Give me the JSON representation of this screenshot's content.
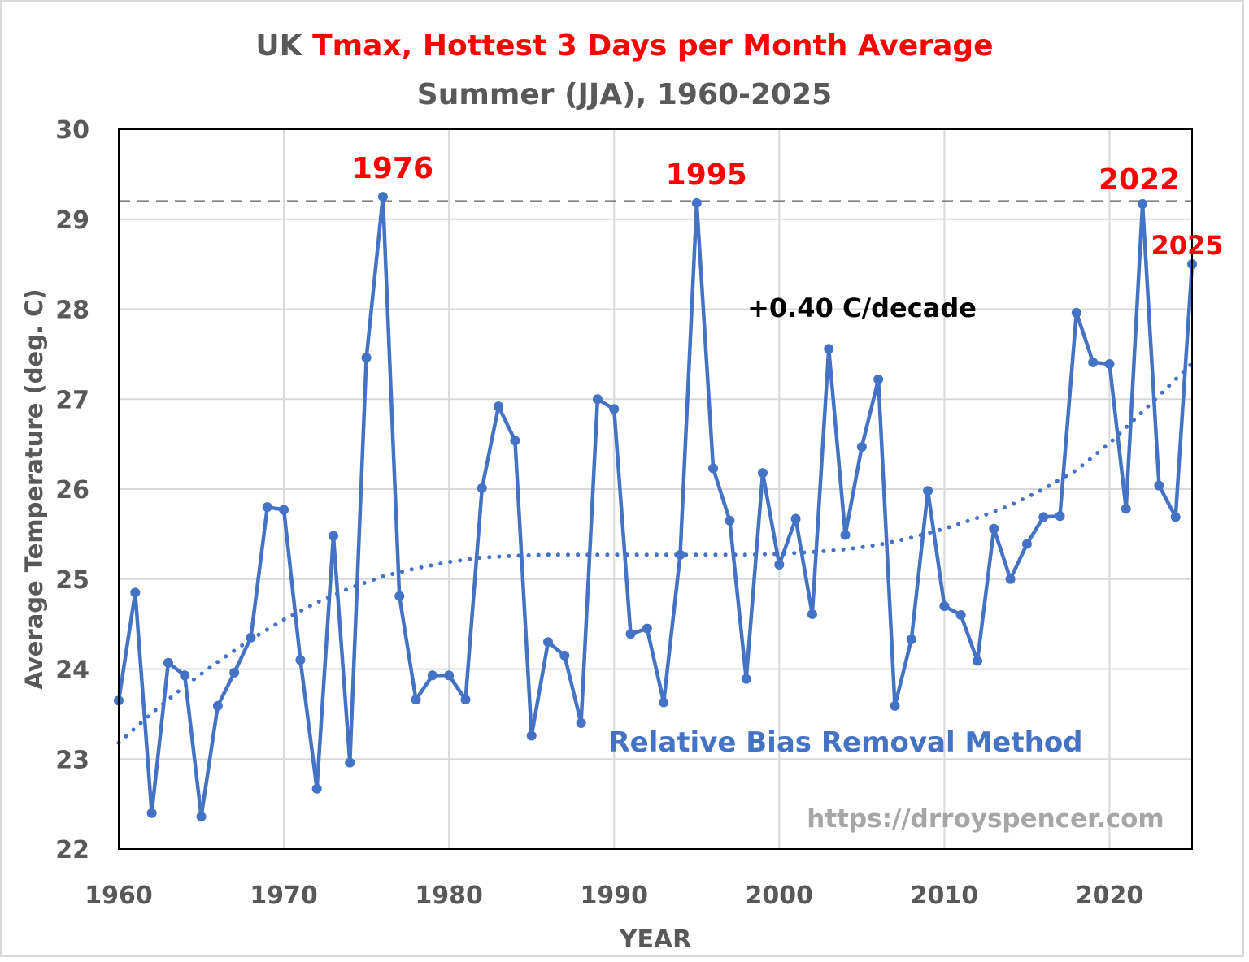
{
  "chart_data": {
    "type": "line",
    "title_part1": "UK ",
    "title_part2": "Tmax, Hottest 3 Days per Month Average",
    "subtitle": "Summer (JJA), 1960-2025",
    "xlabel": "YEAR",
    "ylabel": "Average Temperature (deg. C)",
    "xlim": [
      1960,
      2025
    ],
    "ylim": [
      22,
      30
    ],
    "xticks": [
      1960,
      1970,
      1980,
      1990,
      2000,
      2010,
      2020
    ],
    "yticks": [
      22,
      23,
      24,
      25,
      26,
      27,
      28,
      29,
      30
    ],
    "grid": true,
    "x": [
      1960,
      1961,
      1962,
      1963,
      1964,
      1965,
      1966,
      1967,
      1968,
      1969,
      1970,
      1971,
      1972,
      1973,
      1974,
      1975,
      1976,
      1977,
      1978,
      1979,
      1980,
      1981,
      1982,
      1983,
      1984,
      1985,
      1986,
      1987,
      1988,
      1989,
      1990,
      1991,
      1992,
      1993,
      1994,
      1995,
      1996,
      1997,
      1998,
      1999,
      2000,
      2001,
      2002,
      2003,
      2004,
      2005,
      2006,
      2007,
      2008,
      2009,
      2010,
      2011,
      2012,
      2013,
      2014,
      2015,
      2016,
      2017,
      2018,
      2019,
      2020,
      2021,
      2022,
      2023,
      2024,
      2025
    ],
    "series": [
      {
        "values": [
          23.65,
          24.85,
          22.4,
          24.07,
          23.93,
          22.36,
          23.59,
          23.96,
          24.35,
          25.8,
          25.77,
          24.1,
          22.67,
          25.48,
          22.96,
          27.46,
          29.25,
          24.81,
          23.66,
          23.93,
          23.93,
          23.66,
          26.01,
          26.92,
          26.54,
          23.26,
          24.3,
          24.15,
          23.4,
          27.0,
          26.89,
          24.39,
          24.45,
          23.63,
          25.27,
          29.18,
          26.23,
          25.65,
          23.89,
          26.18,
          25.16,
          25.67,
          24.61,
          27.56,
          25.49,
          26.47,
          27.22,
          23.59,
          24.33,
          25.98,
          24.7,
          24.6,
          24.09,
          25.56,
          25.0,
          25.39,
          25.69,
          25.7,
          27.96,
          27.41,
          27.39,
          25.78,
          29.17,
          26.04,
          25.69,
          28.5
        ]
      }
    ],
    "trend": {
      "style": "dotted",
      "x": [
        1960,
        1962,
        1964,
        1966,
        1968,
        1970,
        1972,
        1974,
        1976,
        1978,
        1980,
        1982,
        1984,
        1986,
        1988,
        1990,
        1992,
        1994,
        1996,
        1998,
        2000,
        2002,
        2004,
        2006,
        2008,
        2010,
        2012,
        2014,
        2016,
        2018,
        2020,
        2022,
        2024,
        2025
      ],
      "values": [
        23.18,
        23.51,
        23.81,
        24.08,
        24.33,
        24.55,
        24.74,
        24.9,
        25.03,
        25.12,
        25.19,
        25.24,
        25.26,
        25.27,
        25.27,
        25.27,
        25.27,
        25.27,
        25.27,
        25.27,
        25.28,
        25.3,
        25.33,
        25.38,
        25.46,
        25.56,
        25.68,
        25.82,
        26.0,
        26.21,
        26.51,
        26.86,
        27.22,
        27.4
      ]
    },
    "reference_line": {
      "value": 29.2,
      "style": "dashed"
    },
    "annotations": [
      {
        "text": "1976",
        "x": 1976,
        "y": 29.25
      },
      {
        "text": "1995",
        "x": 1995,
        "y": 29.18
      },
      {
        "text": "2022",
        "x": 2022,
        "y": 29.17
      },
      {
        "text": "2025",
        "x": 2025,
        "y": 28.5
      }
    ],
    "trend_label": "+0.40 C/decade",
    "method_label": "Relative Bias Removal Method",
    "credit": "https://drroyspencer.com",
    "colors": {
      "series": "#4472c4",
      "title_gray": "#595959",
      "title_red": "#ff0000",
      "grid": "#d9d9d9",
      "reference": "#808080",
      "credit": "#a6a6a6"
    }
  }
}
